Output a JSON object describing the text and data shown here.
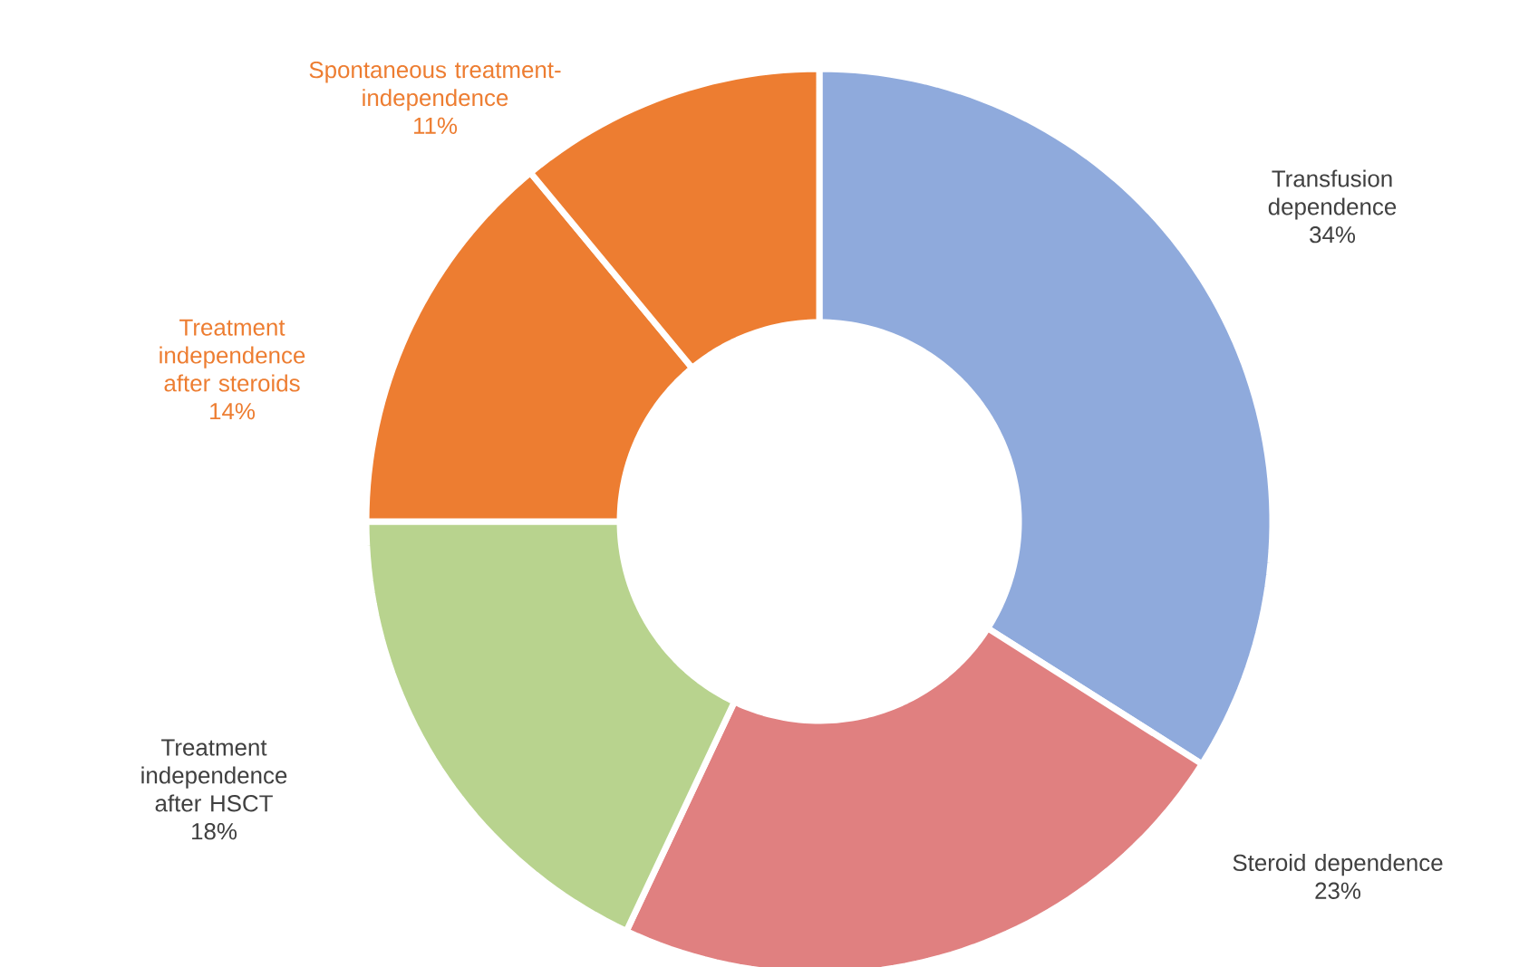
{
  "chart_data": {
    "type": "donut",
    "categories": [
      "Transfusion dependence",
      "Steroid dependence",
      "Treatment independence after HSCT",
      "Treatment independence after steroids",
      "Spontaneous treatment-independence"
    ],
    "values": [
      34,
      23,
      18,
      14,
      11
    ],
    "value_labels": [
      "34%",
      "23%",
      "18%",
      "14%",
      "11%"
    ],
    "colors": [
      "#8FAADC",
      "#E08080",
      "#B8D38E",
      "#ED7D31",
      "#ED7D31"
    ]
  }
}
